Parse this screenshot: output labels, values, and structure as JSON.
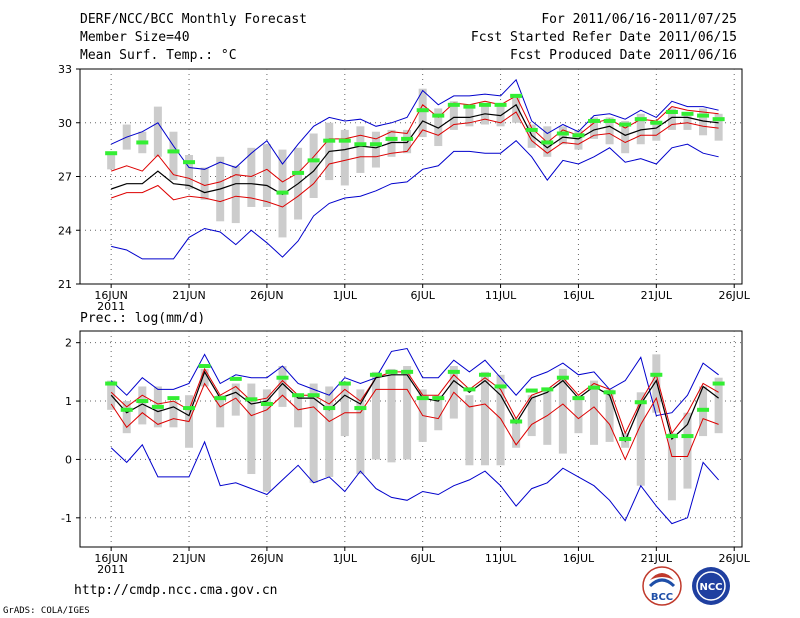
{
  "header": {
    "title": "DERF/NCC/BCC Monthly Forecast",
    "member_size": "Member Size=40",
    "variable1": "Mean Surf. Temp.: °C",
    "period": "For 2011/06/16-2011/07/25",
    "refer_date": "Fcst Started Refer Date 2011/06/15",
    "produced_date": "Fcst Produced Date 2011/06/16"
  },
  "footer": {
    "url": "http://cmdp.ncc.cma.gov.cn",
    "grads": "GrADS: COLA/IGES",
    "logo_left": "BCC",
    "logo_right": "NCC"
  },
  "colors": {
    "maxmin": "#0000cc",
    "spread": "#dd0000",
    "mean": "#000000",
    "box": "#cccccc",
    "obs": "#33ee33"
  },
  "chart_data": [
    {
      "type": "line",
      "title": "Mean Surf. Temp.: °C",
      "ylim": [
        21,
        33
      ],
      "y_ticks": [
        21,
        24,
        27,
        30,
        33
      ],
      "x_ticks": [
        0,
        5,
        10,
        15,
        20,
        25,
        30,
        35,
        40
      ],
      "x_tick_labels": [
        "16JUN",
        "21JUN",
        "26JUN",
        "1JUL",
        "6JUL",
        "11JUL",
        "16JUL",
        "21JUL",
        "26JUL"
      ],
      "x_sub_label": "2011",
      "n_days": 40,
      "series": [
        {
          "name": "max",
          "values": [
            28.8,
            29.2,
            29.5,
            30.0,
            28.7,
            27.5,
            27.4,
            27.8,
            27.5,
            28.3,
            29.0,
            27.7,
            28.8,
            29.8,
            30.3,
            30.1,
            30.2,
            29.8,
            30.0,
            30.3,
            31.8,
            31.0,
            31.5,
            31.5,
            31.6,
            31.5,
            32.4,
            30.1,
            29.4,
            29.9,
            29.5,
            30.4,
            30.5,
            30.2,
            30.7,
            30.3,
            31.2,
            30.9,
            30.9,
            30.7
          ]
        },
        {
          "name": "spread_upper",
          "values": [
            27.3,
            27.6,
            27.3,
            28.2,
            27.1,
            26.9,
            26.5,
            26.7,
            27.1,
            27.0,
            27.4,
            26.7,
            27.2,
            28.1,
            29.1,
            29.1,
            29.3,
            29.1,
            29.5,
            29.4,
            31.0,
            30.3,
            31.1,
            31.0,
            31.2,
            31.0,
            31.5,
            29.7,
            28.9,
            29.6,
            29.3,
            30.0,
            30.2,
            29.7,
            30.2,
            30.1,
            30.9,
            30.7,
            30.6,
            30.5
          ]
        },
        {
          "name": "mean",
          "values": [
            26.3,
            26.6,
            26.6,
            27.3,
            26.6,
            26.5,
            26.1,
            26.3,
            26.6,
            26.6,
            26.5,
            26.0,
            26.6,
            27.3,
            28.4,
            28.5,
            28.7,
            28.6,
            28.9,
            28.9,
            30.1,
            29.7,
            30.3,
            30.3,
            30.5,
            30.4,
            31.0,
            29.3,
            28.6,
            29.2,
            29.1,
            29.6,
            29.8,
            29.3,
            29.6,
            29.7,
            30.3,
            30.3,
            30.1,
            30.0
          ]
        },
        {
          "name": "spread_lower",
          "values": [
            25.8,
            26.1,
            26.1,
            26.5,
            25.7,
            25.9,
            25.8,
            25.6,
            25.9,
            25.8,
            25.6,
            25.3,
            25.9,
            26.6,
            27.7,
            27.9,
            28.1,
            28.1,
            28.3,
            28.4,
            29.6,
            29.3,
            29.9,
            30.0,
            30.2,
            30.0,
            30.6,
            29.0,
            28.3,
            28.9,
            28.8,
            29.3,
            29.4,
            28.9,
            29.3,
            29.3,
            29.9,
            30.0,
            29.8,
            29.7
          ]
        },
        {
          "name": "min",
          "values": [
            23.1,
            22.9,
            22.4,
            22.4,
            22.4,
            23.6,
            24.1,
            23.9,
            23.2,
            24.0,
            23.3,
            22.5,
            23.4,
            24.8,
            25.5,
            25.8,
            25.9,
            26.2,
            26.6,
            26.7,
            27.4,
            27.6,
            28.4,
            28.4,
            28.3,
            28.3,
            29.0,
            28.1,
            26.8,
            27.9,
            27.7,
            28.1,
            28.6,
            27.8,
            28.0,
            27.7,
            28.6,
            28.8,
            28.3,
            28.1
          ]
        },
        {
          "name": "box_top",
          "values": [
            28.3,
            29.9,
            29.5,
            30.9,
            29.5,
            28.2,
            27.5,
            28.1,
            27.6,
            28.6,
            28.8,
            28.5,
            28.6,
            29.4,
            30.0,
            29.6,
            29.8,
            29.5,
            29.6,
            29.6,
            31.9,
            30.8,
            31.2,
            31.0,
            31.0,
            30.9,
            31.6,
            29.9,
            29.8,
            29.8,
            29.6,
            30.3,
            30.3,
            30.1,
            30.5,
            29.9,
            30.8,
            30.6,
            30.8,
            30.5
          ]
        },
        {
          "name": "box_bottom",
          "values": [
            27.4,
            28.5,
            28.3,
            28.1,
            26.8,
            26.3,
            25.7,
            24.5,
            24.4,
            25.3,
            25.3,
            23.6,
            24.6,
            25.8,
            26.8,
            26.5,
            27.2,
            27.5,
            28.1,
            28.3,
            29.2,
            28.7,
            29.6,
            29.8,
            29.9,
            29.8,
            30.0,
            28.6,
            28.1,
            28.8,
            28.5,
            29.1,
            28.8,
            28.3,
            28.8,
            29.0,
            29.6,
            29.6,
            29.3,
            29.0
          ]
        },
        {
          "name": "obs",
          "values": [
            28.3,
            null,
            28.9,
            null,
            28.4,
            27.8,
            null,
            null,
            null,
            null,
            null,
            26.1,
            27.2,
            27.9,
            29.0,
            29.0,
            28.8,
            28.8,
            29.1,
            29.1,
            30.7,
            30.4,
            31.0,
            30.9,
            31.0,
            31.0,
            31.5,
            29.6,
            28.9,
            29.4,
            29.3,
            30.1,
            30.1,
            29.9,
            30.2,
            30.0,
            30.6,
            30.5,
            30.4,
            30.2
          ]
        }
      ]
    },
    {
      "type": "line",
      "title": "Prec.: log(mm/d)",
      "ylim": [
        -1.5,
        2.2
      ],
      "y_ticks": [
        -1,
        0,
        1,
        2
      ],
      "x_ticks": [
        0,
        5,
        10,
        15,
        20,
        25,
        30,
        35,
        40
      ],
      "x_tick_labels": [
        "16JUN",
        "21JUN",
        "26JUN",
        "1JUL",
        "6JUL",
        "11JUL",
        "16JUL",
        "21JUL",
        "26JUL"
      ],
      "x_sub_label": "2011",
      "n_days": 40,
      "series": [
        {
          "name": "max",
          "values": [
            1.35,
            1.1,
            1.4,
            1.2,
            1.2,
            1.3,
            1.8,
            1.3,
            1.45,
            1.4,
            1.4,
            1.6,
            1.3,
            1.2,
            1.1,
            1.4,
            1.3,
            1.4,
            1.85,
            1.9,
            1.4,
            1.4,
            1.7,
            1.5,
            1.7,
            1.4,
            1.1,
            1.4,
            1.5,
            1.65,
            1.45,
            1.5,
            1.2,
            1.35,
            1.75,
            0.75,
            0.8,
            1.1,
            1.65,
            1.45
          ]
        },
        {
          "name": "spread_upper",
          "values": [
            1.15,
            0.9,
            1.1,
            0.95,
            1.0,
            0.85,
            1.55,
            1.1,
            1.25,
            1.0,
            1.05,
            1.35,
            1.1,
            1.1,
            0.95,
            1.2,
            1.0,
            1.4,
            1.5,
            1.5,
            1.1,
            1.1,
            1.45,
            1.2,
            1.4,
            1.2,
            0.7,
            1.1,
            1.2,
            1.4,
            1.1,
            1.3,
            1.2,
            0.45,
            1.0,
            1.45,
            0.45,
            0.8,
            1.3,
            1.15
          ]
        },
        {
          "name": "mean",
          "values": [
            1.1,
            0.8,
            0.95,
            0.82,
            0.9,
            0.75,
            1.5,
            1.05,
            1.15,
            0.95,
            1.0,
            1.3,
            1.05,
            1.05,
            0.85,
            1.1,
            0.95,
            1.4,
            1.45,
            1.45,
            1.05,
            1.0,
            1.35,
            1.15,
            1.35,
            1.1,
            0.62,
            1.05,
            1.15,
            1.35,
            1.05,
            1.25,
            1.1,
            0.32,
            0.95,
            1.35,
            0.35,
            0.6,
            1.25,
            1.05
          ]
        },
        {
          "name": "spread_lower",
          "values": [
            0.95,
            0.55,
            0.8,
            0.6,
            0.7,
            0.65,
            1.3,
            0.9,
            1.05,
            0.75,
            0.85,
            1.1,
            0.85,
            0.9,
            0.65,
            0.8,
            0.8,
            1.2,
            1.2,
            1.2,
            0.75,
            0.7,
            1.15,
            0.9,
            0.95,
            0.7,
            0.25,
            0.6,
            0.75,
            0.95,
            0.7,
            0.9,
            0.6,
            0.0,
            0.6,
            1.05,
            0.05,
            0.05,
            0.7,
            0.6
          ]
        },
        {
          "name": "min",
          "values": [
            0.2,
            -0.05,
            0.25,
            -0.3,
            -0.3,
            -0.3,
            0.3,
            -0.45,
            -0.4,
            -0.5,
            -0.6,
            -0.35,
            -0.1,
            -0.4,
            -0.3,
            -0.55,
            -0.2,
            -0.5,
            -0.65,
            -0.7,
            -0.55,
            -0.6,
            -0.45,
            -0.35,
            -0.2,
            -0.45,
            -0.8,
            -0.5,
            -0.4,
            -0.15,
            -0.3,
            -0.45,
            -0.7,
            -1.05,
            -0.45,
            -0.8,
            -1.1,
            -1.0,
            -0.05,
            -0.35
          ]
        },
        {
          "name": "box_top",
          "values": [
            1.35,
            1.0,
            1.25,
            1.25,
            1.0,
            1.1,
            1.55,
            1.1,
            1.3,
            1.3,
            1.2,
            1.6,
            1.1,
            1.3,
            1.25,
            1.3,
            1.2,
            1.5,
            1.55,
            1.6,
            1.2,
            1.1,
            1.6,
            1.1,
            1.5,
            1.45,
            0.7,
            1.1,
            1.2,
            1.55,
            1.1,
            1.35,
            1.2,
            0.45,
            1.15,
            1.8,
            0.45,
            0.8,
            1.25,
            1.4
          ]
        },
        {
          "name": "box_bottom",
          "values": [
            0.85,
            0.45,
            0.6,
            0.55,
            0.55,
            0.2,
            1.25,
            0.55,
            0.75,
            -0.25,
            -0.55,
            0.9,
            0.55,
            -0.4,
            -0.3,
            0.4,
            -0.25,
            0.0,
            -0.05,
            0.0,
            0.3,
            0.5,
            0.7,
            -0.1,
            -0.1,
            -0.1,
            0.2,
            0.4,
            0.25,
            0.1,
            0.45,
            0.25,
            0.3,
            0.2,
            -0.45,
            0.8,
            -0.7,
            -0.5,
            0.4,
            0.45
          ]
        },
        {
          "name": "obs",
          "values": [
            1.3,
            0.85,
            1.0,
            0.9,
            1.05,
            0.88,
            1.6,
            1.05,
            1.38,
            1.03,
            0.95,
            1.4,
            1.1,
            1.1,
            0.88,
            1.3,
            0.88,
            1.45,
            1.5,
            1.5,
            1.05,
            1.05,
            1.5,
            1.2,
            1.45,
            1.25,
            0.65,
            1.18,
            1.2,
            1.4,
            1.05,
            1.23,
            1.15,
            0.35,
            0.98,
            1.45,
            0.4,
            0.4,
            0.85,
            1.3
          ]
        }
      ]
    }
  ]
}
